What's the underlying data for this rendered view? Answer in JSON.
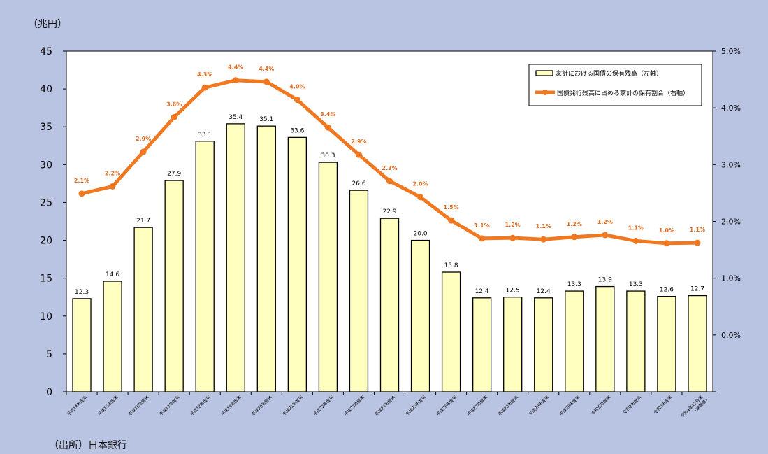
{
  "ylabel_left": "（兆円）",
  "source": "（出所）日本銀行",
  "colors": {
    "background": "#b9c3e2",
    "bar": "#ffffc0",
    "line": "#f07820"
  },
  "chart_data": {
    "type": "bar",
    "categories": [
      "平成14年度末",
      "平成15年度末",
      "平成16年度末",
      "平成17年度末",
      "平成18年度末",
      "平成19年度末",
      "平成20年度末",
      "平成21年度末",
      "平成22年度末",
      "平成23年度末",
      "平成24年度末",
      "平成25年度末",
      "平成26年度末",
      "平成27年度末",
      "平成28年度末",
      "平成29年度末",
      "平成30年度末",
      "令和元年度末",
      "令和2年度末",
      "令和3年度末",
      [
        "令和4年12月末",
        "（速報値）"
      ]
    ],
    "series": [
      {
        "name": "家計における国債の保有残高（左軸）",
        "type": "bar",
        "axis": "left",
        "values": [
          12.3,
          14.6,
          21.7,
          27.9,
          33.1,
          35.4,
          35.1,
          33.6,
          30.3,
          26.6,
          22.9,
          20.0,
          15.8,
          12.4,
          12.5,
          12.4,
          13.3,
          13.9,
          13.3,
          12.6,
          12.7
        ],
        "labels": [
          "12.3",
          "14.6",
          "21.7",
          "27.9",
          "33.1",
          "35.4",
          "35.1",
          "33.6",
          "30.3",
          "26.6",
          "22.9",
          "20.0",
          "15.8",
          "12.4",
          "12.5",
          "12.4",
          "13.3",
          "13.9",
          "13.3",
          "12.6",
          "12.7"
        ]
      },
      {
        "name": "国債発行残高に占める家計の保有割合（右軸）",
        "type": "line",
        "axis": "right",
        "values": [
          2.07,
          2.22,
          2.93,
          3.64,
          4.25,
          4.4,
          4.37,
          4.0,
          3.43,
          2.87,
          2.33,
          2.0,
          1.52,
          1.15,
          1.16,
          1.13,
          1.18,
          1.22,
          1.1,
          1.05,
          1.06
        ],
        "labels": [
          "2.1%",
          "2.2%",
          "2.9%",
          "3.6%",
          "4.3%",
          "4.4%",
          "4.4%",
          "4.0%",
          "3.4%",
          "2.9%",
          "2.3%",
          "2.0%",
          "1.5%",
          "1.1%",
          "1.2%",
          "1.1%",
          "1.2%",
          "1.2%",
          "1.1%",
          "1.0%",
          "1.1%"
        ]
      }
    ],
    "y_left": {
      "range": [
        0,
        45
      ],
      "ticks": [
        "0",
        "5",
        "10",
        "15",
        "20",
        "25",
        "30",
        "35",
        "40",
        "45"
      ]
    },
    "y_right": {
      "range": [
        -2.0,
        5.0
      ],
      "ticks": [
        "",
        "0.0%",
        "1.0%",
        "2.0%",
        "3.0%",
        "4.0%",
        "5.0%"
      ]
    },
    "legend_position": "top-right",
    "grid": false
  }
}
